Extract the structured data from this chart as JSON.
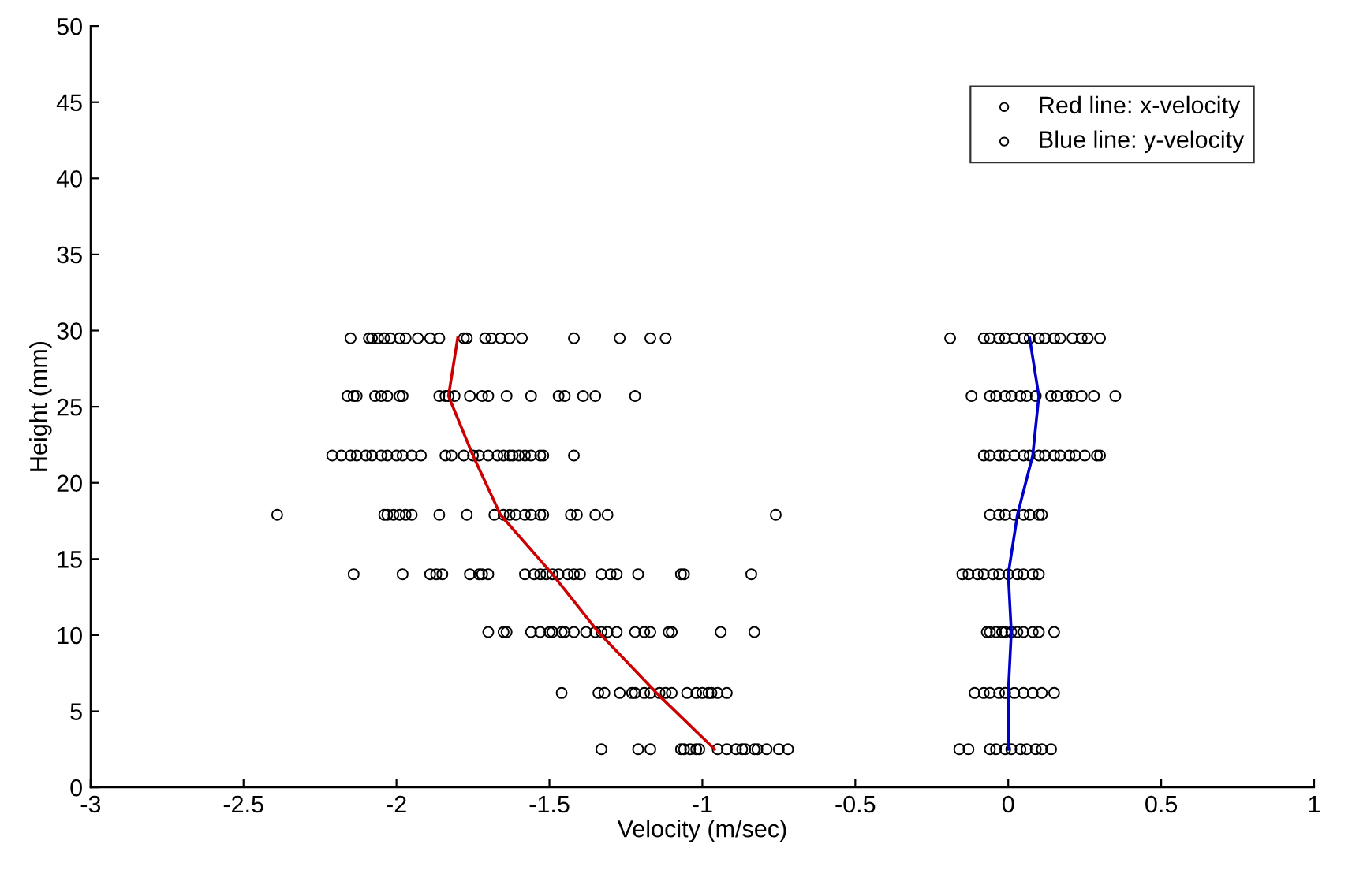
{
  "chart_data": {
    "type": "scatter",
    "xlabel": "Velocity (m/sec)",
    "ylabel": "Height (mm)",
    "xlim": [
      -3,
      1
    ],
    "ylim": [
      0,
      50
    ],
    "xticks": [
      -3,
      -2.5,
      -2,
      -1.5,
      -1,
      -0.5,
      0,
      0.5,
      1
    ],
    "yticks": [
      0,
      5,
      10,
      15,
      20,
      25,
      30,
      35,
      40,
      45,
      50
    ],
    "grid": false,
    "legend": "top right",
    "series": [
      {
        "name": "Red line: x-velocity",
        "marker": "circle",
        "color": "#000000",
        "x": [
          -2.15,
          -2.09,
          -2.08,
          -2.06,
          -2.04,
          -2.02,
          -1.99,
          -1.97,
          -1.93,
          -1.89,
          -1.86,
          -1.78,
          -1.77,
          -1.71,
          -1.69,
          -1.66,
          -1.63,
          -1.59,
          -1.42,
          -1.27,
          -1.17,
          -1.12,
          -2.16,
          -2.14,
          -2.13,
          -2.07,
          -2.05,
          -2.03,
          -1.99,
          -1.98,
          -1.86,
          -1.84,
          -1.83,
          -1.81,
          -1.76,
          -1.72,
          -1.7,
          -1.64,
          -1.56,
          -1.47,
          -1.45,
          -1.39,
          -1.35,
          -1.22,
          -2.21,
          -2.18,
          -2.15,
          -2.13,
          -2.1,
          -2.08,
          -2.05,
          -2.03,
          -2.0,
          -1.98,
          -1.95,
          -1.92,
          -1.84,
          -1.82,
          -1.78,
          -1.75,
          -1.73,
          -1.7,
          -1.67,
          -1.65,
          -1.63,
          -1.62,
          -1.6,
          -1.58,
          -1.56,
          -1.53,
          -1.52,
          -1.42,
          -2.39,
          -2.04,
          -2.03,
          -2.01,
          -1.99,
          -1.97,
          -1.95,
          -1.86,
          -1.77,
          -1.68,
          -1.65,
          -1.63,
          -1.61,
          -1.58,
          -1.56,
          -1.53,
          -1.52,
          -1.43,
          -1.41,
          -1.35,
          -1.31,
          -0.76,
          -2.14,
          -1.98,
          -1.89,
          -1.87,
          -1.85,
          -1.76,
          -1.73,
          -1.72,
          -1.7,
          -1.58,
          -1.55,
          -1.53,
          -1.51,
          -1.49,
          -1.47,
          -1.44,
          -1.42,
          -1.4,
          -1.33,
          -1.3,
          -1.28,
          -1.21,
          -1.07,
          -1.06,
          -0.84,
          -1.7,
          -1.65,
          -1.64,
          -1.56,
          -1.53,
          -1.5,
          -1.49,
          -1.46,
          -1.45,
          -1.42,
          -1.38,
          -1.35,
          -1.33,
          -1.31,
          -1.28,
          -1.22,
          -1.19,
          -1.17,
          -1.11,
          -1.1,
          -0.94,
          -0.83,
          -1.46,
          -1.34,
          -1.32,
          -1.27,
          -1.23,
          -1.22,
          -1.19,
          -1.17,
          -1.14,
          -1.12,
          -1.1,
          -1.05,
          -1.02,
          -1.0,
          -0.98,
          -0.97,
          -0.95,
          -0.92,
          -1.33,
          -1.21,
          -1.17,
          -1.07,
          -1.06,
          -1.04,
          -1.02,
          -1.01,
          -0.95,
          -0.92,
          -0.89,
          -0.87,
          -0.86,
          -0.83,
          -0.82,
          -0.79,
          -0.75,
          -0.72
        ],
        "values": [
          29.5,
          29.5,
          29.5,
          29.5,
          29.5,
          29.5,
          29.5,
          29.5,
          29.5,
          29.5,
          29.5,
          29.5,
          29.5,
          29.5,
          29.5,
          29.5,
          29.5,
          29.5,
          29.5,
          29.5,
          29.5,
          29.5,
          25.7,
          25.7,
          25.7,
          25.7,
          25.7,
          25.7,
          25.7,
          25.7,
          25.7,
          25.7,
          25.7,
          25.7,
          25.7,
          25.7,
          25.7,
          25.7,
          25.7,
          25.7,
          25.7,
          25.7,
          25.7,
          25.7,
          21.8,
          21.8,
          21.8,
          21.8,
          21.8,
          21.8,
          21.8,
          21.8,
          21.8,
          21.8,
          21.8,
          21.8,
          21.8,
          21.8,
          21.8,
          21.8,
          21.8,
          21.8,
          21.8,
          21.8,
          21.8,
          21.8,
          21.8,
          21.8,
          21.8,
          21.8,
          21.8,
          21.8,
          17.9,
          17.9,
          17.9,
          17.9,
          17.9,
          17.9,
          17.9,
          17.9,
          17.9,
          17.9,
          17.9,
          17.9,
          17.9,
          17.9,
          17.9,
          17.9,
          17.9,
          17.9,
          17.9,
          17.9,
          17.9,
          17.9,
          14,
          14,
          14,
          14,
          14,
          14,
          14,
          14,
          14,
          14,
          14,
          14,
          14,
          14,
          14,
          14,
          14,
          14,
          14,
          14,
          14,
          14,
          14,
          14,
          14,
          10.2,
          10.2,
          10.2,
          10.2,
          10.2,
          10.2,
          10.2,
          10.2,
          10.2,
          10.2,
          10.2,
          10.2,
          10.2,
          10.2,
          10.2,
          10.2,
          10.2,
          10.2,
          10.2,
          10.2,
          10.2,
          10.2,
          6.2,
          6.2,
          6.2,
          6.2,
          6.2,
          6.2,
          6.2,
          6.2,
          6.2,
          6.2,
          6.2,
          6.2,
          6.2,
          6.2,
          6.2,
          6.2,
          6.2,
          6.2,
          2.5,
          2.5,
          2.5,
          2.5,
          2.5,
          2.5,
          2.5,
          2.5,
          2.5,
          2.5,
          2.5,
          2.5,
          2.5,
          2.5,
          2.5,
          2.5,
          2.5,
          2.5
        ]
      },
      {
        "name": "Blue line: y-velocity",
        "marker": "circle",
        "color": "#000000",
        "x": [
          -0.19,
          -0.08,
          -0.06,
          -0.03,
          -0.01,
          0.02,
          0.05,
          0.07,
          0.1,
          0.12,
          0.15,
          0.17,
          0.21,
          0.24,
          0.26,
          0.3,
          -0.12,
          -0.06,
          -0.04,
          -0.01,
          0.01,
          0.04,
          0.06,
          0.09,
          0.14,
          0.16,
          0.19,
          0.21,
          0.24,
          0.28,
          0.35,
          -0.08,
          -0.06,
          -0.03,
          -0.01,
          0.02,
          0.05,
          0.07,
          0.1,
          0.12,
          0.15,
          0.17,
          0.2,
          0.22,
          0.25,
          0.29,
          0.3,
          -0.06,
          -0.03,
          -0.01,
          0.02,
          0.05,
          0.07,
          0.1,
          0.11,
          -0.15,
          -0.13,
          -0.1,
          -0.08,
          -0.05,
          -0.03,
          0.0,
          0.03,
          0.05,
          0.08,
          0.1,
          -0.07,
          -0.06,
          -0.04,
          -0.02,
          -0.01,
          0.01,
          0.03,
          0.05,
          0.08,
          0.1,
          0.15,
          -0.11,
          -0.08,
          -0.06,
          -0.03,
          -0.01,
          0.02,
          0.05,
          0.08,
          0.11,
          0.15,
          -0.16,
          -0.13,
          -0.06,
          -0.04,
          -0.01,
          0.01,
          0.04,
          0.06,
          0.09,
          0.11,
          0.14
        ],
        "values": [
          29.5,
          29.5,
          29.5,
          29.5,
          29.5,
          29.5,
          29.5,
          29.5,
          29.5,
          29.5,
          29.5,
          29.5,
          29.5,
          29.5,
          29.5,
          29.5,
          25.7,
          25.7,
          25.7,
          25.7,
          25.7,
          25.7,
          25.7,
          25.7,
          25.7,
          25.7,
          25.7,
          25.7,
          25.7,
          25.7,
          25.7,
          21.8,
          21.8,
          21.8,
          21.8,
          21.8,
          21.8,
          21.8,
          21.8,
          21.8,
          21.8,
          21.8,
          21.8,
          21.8,
          21.8,
          21.8,
          21.8,
          17.9,
          17.9,
          17.9,
          17.9,
          17.9,
          17.9,
          17.9,
          17.9,
          14,
          14,
          14,
          14,
          14,
          14,
          14,
          14,
          14,
          14,
          14,
          10.2,
          10.2,
          10.2,
          10.2,
          10.2,
          10.2,
          10.2,
          10.2,
          10.2,
          10.2,
          10.2,
          6.2,
          6.2,
          6.2,
          6.2,
          6.2,
          6.2,
          6.2,
          6.2,
          6.2,
          6.2,
          2.5,
          2.5,
          2.5,
          2.5,
          2.5,
          2.5,
          2.5,
          2.5,
          2.5,
          2.5,
          2.5
        ]
      },
      {
        "type": "line",
        "color": "#cc0000",
        "line_style": "solid",
        "x": [
          -1.8,
          -1.83,
          -1.75,
          -1.66,
          -1.49,
          -1.34,
          -1.15,
          -0.96
        ],
        "values": [
          29.5,
          25.7,
          21.8,
          17.9,
          14,
          10.2,
          6.2,
          2.5
        ]
      },
      {
        "type": "line",
        "color": "#0000cc",
        "line_style": "solid",
        "x": [
          0.07,
          0.1,
          0.08,
          0.03,
          0.0,
          0.01,
          0.0,
          0.0
        ],
        "values": [
          29.5,
          25.7,
          21.8,
          17.9,
          14,
          10.2,
          6.2,
          2.5
        ]
      }
    ]
  }
}
